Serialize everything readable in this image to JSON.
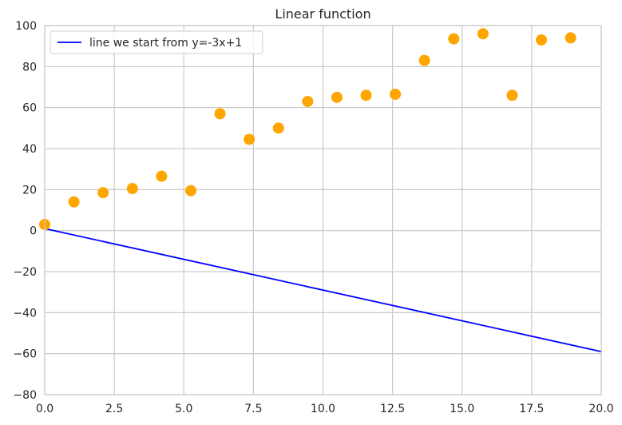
{
  "chart_data": {
    "type": "scatter",
    "title": "Linear function",
    "xlabel": "",
    "ylabel": "",
    "xlim": [
      0,
      20
    ],
    "ylim": [
      -80,
      100
    ],
    "x_ticks": [
      "0.0",
      "2.5",
      "5.0",
      "7.5",
      "10.0",
      "12.5",
      "15.0",
      "17.5",
      "20.0"
    ],
    "y_ticks": [
      "−80",
      "−60",
      "−40",
      "−20",
      "0",
      "20",
      "40",
      "60",
      "80",
      "100"
    ],
    "grid": true,
    "legend_position": "top-left",
    "series": [
      {
        "kind": "line",
        "name": "line we start from y=-3x+1",
        "color": "#0000ff",
        "x": [
          0,
          20
        ],
        "y": [
          1,
          -59
        ]
      },
      {
        "kind": "scatter",
        "color": "#ffa500",
        "x": [
          0.0,
          1.05,
          2.1,
          3.15,
          4.2,
          5.25,
          6.3,
          7.35,
          8.4,
          9.45,
          10.5,
          11.55,
          12.6,
          13.65,
          14.7,
          15.75,
          16.8,
          17.85,
          18.9
        ],
        "y": [
          3,
          14,
          18.5,
          20.5,
          26.5,
          19.5,
          57,
          44.5,
          50,
          63,
          65,
          66,
          66.5,
          83,
          93.5,
          96,
          66,
          93,
          94
        ]
      }
    ]
  }
}
